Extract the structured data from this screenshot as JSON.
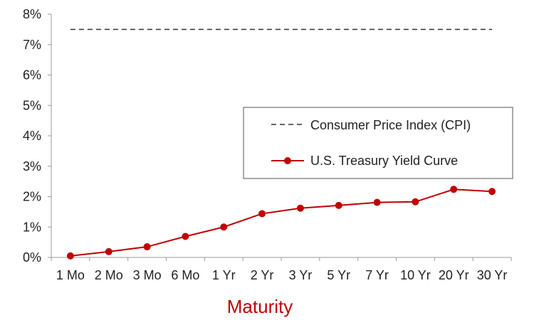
{
  "chart_data": {
    "type": "line",
    "xlabel": "Maturity",
    "ylabel": "",
    "ylim": [
      0,
      8
    ],
    "yticks": [
      "0%",
      "1%",
      "2%",
      "3%",
      "4%",
      "5%",
      "6%",
      "7%",
      "8%"
    ],
    "categories": [
      "1 Mo",
      "2 Mo",
      "3 Mo",
      "6 Mo",
      "1 Yr",
      "2 Yr",
      "3 Yr",
      "5 Yr",
      "7 Yr",
      "10 Yr",
      "20 Yr",
      "30 Yr"
    ],
    "grid": false,
    "legend_position": "center-right",
    "series": [
      {
        "name": "Consumer Price Index (CPI)",
        "style": "dashed",
        "color": "#333333",
        "values": [
          7.5,
          7.5,
          7.5,
          7.5,
          7.5,
          7.5,
          7.5,
          7.5,
          7.5,
          7.5,
          7.5,
          7.5
        ]
      },
      {
        "name": "U.S. Treasury Yield Curve",
        "style": "line-markers",
        "color": "#c00000",
        "values": [
          0.05,
          0.19,
          0.35,
          0.69,
          1.0,
          1.44,
          1.62,
          1.71,
          1.81,
          1.83,
          2.24,
          2.17
        ]
      }
    ]
  }
}
